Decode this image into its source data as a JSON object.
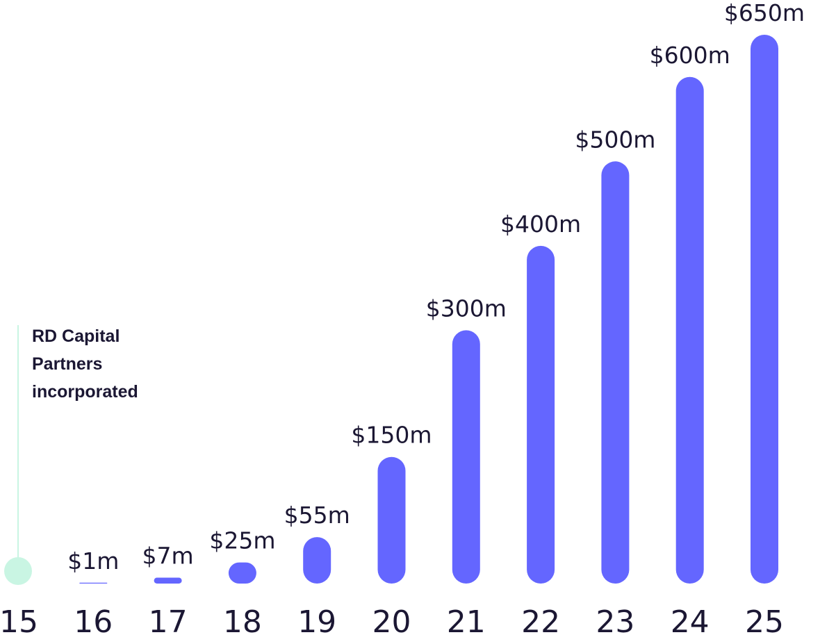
{
  "chart_data": {
    "type": "bar",
    "categories": [
      "15",
      "16",
      "17",
      "18",
      "19",
      "20",
      "21",
      "22",
      "23",
      "24",
      "25"
    ],
    "values": [
      null,
      1,
      7,
      25,
      55,
      150,
      300,
      400,
      500,
      600,
      650
    ],
    "value_labels": [
      null,
      "$1m",
      "$7m",
      "$25m",
      "$55m",
      "$150m",
      "$300m",
      "$400m",
      "$500m",
      "$600m",
      "$650m"
    ],
    "color": "#6466ff",
    "annotation": "RD Capital Partners incorporated",
    "annotation_color": "#c9f5e3"
  }
}
